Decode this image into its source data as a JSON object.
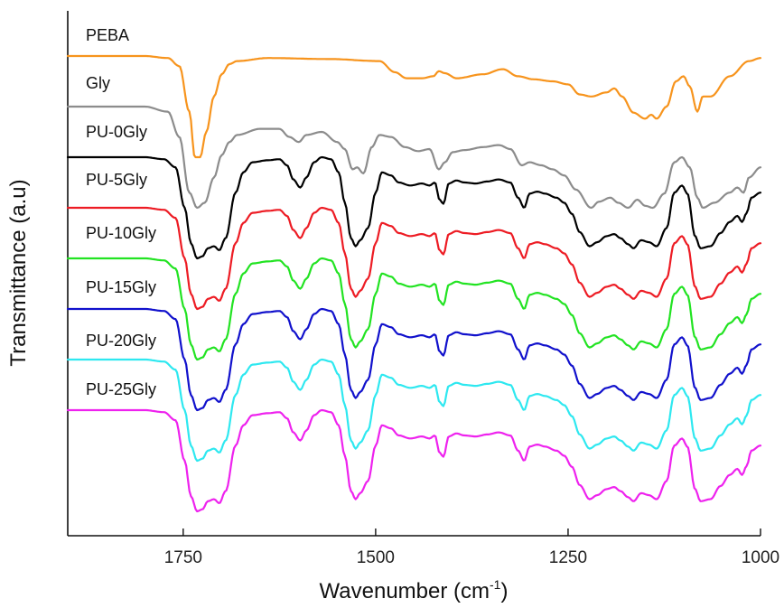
{
  "chart_data": {
    "type": "line",
    "xlabel": "Wavenumber (cm",
    "xlabel_sup": "-1",
    "xlabel_end": ")",
    "ylabel": "Transmittance (a.u)",
    "xlim": [
      1900,
      1000
    ],
    "x_reversed": true,
    "x_ticks": [
      1750,
      1500,
      1250,
      1000
    ],
    "y_ticks_shown": false,
    "grid": false,
    "series": [
      {
        "name": "PEBA",
        "color": "#F7941D",
        "offset": 0,
        "key": "peba"
      },
      {
        "name": "Gly",
        "color": "#8C8C8C",
        "offset": 1,
        "key": "gly"
      },
      {
        "name": "PU-0Gly",
        "color": "#000000",
        "offset": 2,
        "key": "pu"
      },
      {
        "name": "PU-5Gly",
        "color": "#ED1C24",
        "offset": 3,
        "key": "pu"
      },
      {
        "name": "PU-10Gly",
        "color": "#22E322",
        "offset": 4,
        "key": "pu"
      },
      {
        "name": "PU-15Gly",
        "color": "#1111CC",
        "offset": 5,
        "key": "pu"
      },
      {
        "name": "PU-20Gly",
        "color": "#2EE8F0",
        "offset": 6,
        "key": "pu"
      },
      {
        "name": "PU-25Gly",
        "color": "#EE22EE",
        "offset": 7,
        "key": "pu"
      }
    ],
    "shapes": {
      "peba": [
        [
          1900,
          0.0
        ],
        [
          1800,
          0.0
        ],
        [
          1770,
          0.02
        ],
        [
          1755,
          0.1
        ],
        [
          1742,
          0.55
        ],
        [
          1735,
          1.0
        ],
        [
          1728,
          1.0
        ],
        [
          1720,
          0.75
        ],
        [
          1710,
          0.4
        ],
        [
          1700,
          0.18
        ],
        [
          1690,
          0.08
        ],
        [
          1680,
          0.05
        ],
        [
          1640,
          0.02
        ],
        [
          1560,
          0.03
        ],
        [
          1495,
          0.05
        ],
        [
          1475,
          0.16
        ],
        [
          1460,
          0.22
        ],
        [
          1440,
          0.22
        ],
        [
          1425,
          0.2
        ],
        [
          1418,
          0.15
        ],
        [
          1410,
          0.17
        ],
        [
          1395,
          0.22
        ],
        [
          1360,
          0.18
        ],
        [
          1335,
          0.13
        ],
        [
          1315,
          0.2
        ],
        [
          1295,
          0.23
        ],
        [
          1270,
          0.25
        ],
        [
          1250,
          0.28
        ],
        [
          1235,
          0.38
        ],
        [
          1220,
          0.4
        ],
        [
          1200,
          0.36
        ],
        [
          1190,
          0.32
        ],
        [
          1180,
          0.4
        ],
        [
          1165,
          0.56
        ],
        [
          1150,
          0.62
        ],
        [
          1142,
          0.58
        ],
        [
          1135,
          0.62
        ],
        [
          1122,
          0.5
        ],
        [
          1110,
          0.25
        ],
        [
          1100,
          0.2
        ],
        [
          1092,
          0.3
        ],
        [
          1082,
          0.55
        ],
        [
          1075,
          0.4
        ],
        [
          1065,
          0.4
        ],
        [
          1040,
          0.2
        ],
        [
          1015,
          0.05
        ],
        [
          1000,
          0.02
        ]
      ],
      "gly": [
        [
          1900,
          0.0
        ],
        [
          1800,
          0.0
        ],
        [
          1770,
          0.05
        ],
        [
          1755,
          0.3
        ],
        [
          1742,
          0.85
        ],
        [
          1732,
          1.0
        ],
        [
          1722,
          0.95
        ],
        [
          1710,
          0.7
        ],
        [
          1700,
          0.48
        ],
        [
          1690,
          0.35
        ],
        [
          1680,
          0.28
        ],
        [
          1650,
          0.22
        ],
        [
          1625,
          0.22
        ],
        [
          1612,
          0.3
        ],
        [
          1600,
          0.35
        ],
        [
          1590,
          0.28
        ],
        [
          1570,
          0.25
        ],
        [
          1550,
          0.35
        ],
        [
          1540,
          0.42
        ],
        [
          1530,
          0.62
        ],
        [
          1524,
          0.6
        ],
        [
          1516,
          0.66
        ],
        [
          1505,
          0.4
        ],
        [
          1495,
          0.28
        ],
        [
          1480,
          0.3
        ],
        [
          1462,
          0.4
        ],
        [
          1445,
          0.44
        ],
        [
          1430,
          0.42
        ],
        [
          1418,
          0.62
        ],
        [
          1410,
          0.55
        ],
        [
          1400,
          0.45
        ],
        [
          1385,
          0.43
        ],
        [
          1360,
          0.4
        ],
        [
          1340,
          0.38
        ],
        [
          1325,
          0.42
        ],
        [
          1310,
          0.58
        ],
        [
          1300,
          0.55
        ],
        [
          1285,
          0.58
        ],
        [
          1270,
          0.62
        ],
        [
          1255,
          0.68
        ],
        [
          1240,
          0.82
        ],
        [
          1220,
          1.0
        ],
        [
          1210,
          0.94
        ],
        [
          1195,
          0.9
        ],
        [
          1185,
          0.95
        ],
        [
          1172,
          1.0
        ],
        [
          1160,
          0.92
        ],
        [
          1150,
          0.98
        ],
        [
          1140,
          1.0
        ],
        [
          1125,
          0.86
        ],
        [
          1112,
          0.55
        ],
        [
          1102,
          0.5
        ],
        [
          1092,
          0.6
        ],
        [
          1082,
          0.9
        ],
        [
          1075,
          1.0
        ],
        [
          1060,
          0.95
        ],
        [
          1040,
          0.85
        ],
        [
          1030,
          0.8
        ],
        [
          1022,
          0.85
        ],
        [
          1015,
          0.7
        ],
        [
          1000,
          0.6
        ]
      ],
      "pu": [
        [
          1900,
          0.0
        ],
        [
          1800,
          0.0
        ],
        [
          1775,
          0.02
        ],
        [
          1760,
          0.1
        ],
        [
          1748,
          0.5
        ],
        [
          1740,
          0.85
        ],
        [
          1732,
          1.0
        ],
        [
          1725,
          0.98
        ],
        [
          1718,
          0.9
        ],
        [
          1710,
          0.88
        ],
        [
          1703,
          0.92
        ],
        [
          1695,
          0.8
        ],
        [
          1682,
          0.35
        ],
        [
          1672,
          0.15
        ],
        [
          1660,
          0.05
        ],
        [
          1640,
          0.03
        ],
        [
          1625,
          0.02
        ],
        [
          1615,
          0.08
        ],
        [
          1607,
          0.22
        ],
        [
          1598,
          0.3
        ],
        [
          1590,
          0.2
        ],
        [
          1580,
          0.05
        ],
        [
          1570,
          0.0
        ],
        [
          1558,
          0.02
        ],
        [
          1548,
          0.15
        ],
        [
          1540,
          0.45
        ],
        [
          1532,
          0.8
        ],
        [
          1526,
          0.88
        ],
        [
          1520,
          0.82
        ],
        [
          1510,
          0.7
        ],
        [
          1500,
          0.35
        ],
        [
          1492,
          0.15
        ],
        [
          1480,
          0.18
        ],
        [
          1470,
          0.25
        ],
        [
          1455,
          0.28
        ],
        [
          1440,
          0.26
        ],
        [
          1430,
          0.28
        ],
        [
          1423,
          0.25
        ],
        [
          1417,
          0.42
        ],
        [
          1412,
          0.46
        ],
        [
          1405,
          0.26
        ],
        [
          1395,
          0.23
        ],
        [
          1385,
          0.25
        ],
        [
          1370,
          0.26
        ],
        [
          1355,
          0.24
        ],
        [
          1340,
          0.22
        ],
        [
          1325,
          0.25
        ],
        [
          1315,
          0.4
        ],
        [
          1307,
          0.5
        ],
        [
          1300,
          0.36
        ],
        [
          1290,
          0.34
        ],
        [
          1280,
          0.36
        ],
        [
          1265,
          0.4
        ],
        [
          1255,
          0.45
        ],
        [
          1245,
          0.56
        ],
        [
          1235,
          0.74
        ],
        [
          1222,
          0.88
        ],
        [
          1212,
          0.84
        ],
        [
          1200,
          0.78
        ],
        [
          1190,
          0.76
        ],
        [
          1182,
          0.8
        ],
        [
          1172,
          0.86
        ],
        [
          1165,
          0.9
        ],
        [
          1155,
          0.82
        ],
        [
          1145,
          0.84
        ],
        [
          1135,
          0.88
        ],
        [
          1122,
          0.7
        ],
        [
          1112,
          0.35
        ],
        [
          1102,
          0.28
        ],
        [
          1095,
          0.36
        ],
        [
          1085,
          0.78
        ],
        [
          1078,
          0.9
        ],
        [
          1065,
          0.88
        ],
        [
          1052,
          0.75
        ],
        [
          1040,
          0.64
        ],
        [
          1030,
          0.58
        ],
        [
          1024,
          0.64
        ],
        [
          1018,
          0.55
        ],
        [
          1012,
          0.4
        ],
        [
          1000,
          0.35
        ]
      ]
    }
  }
}
